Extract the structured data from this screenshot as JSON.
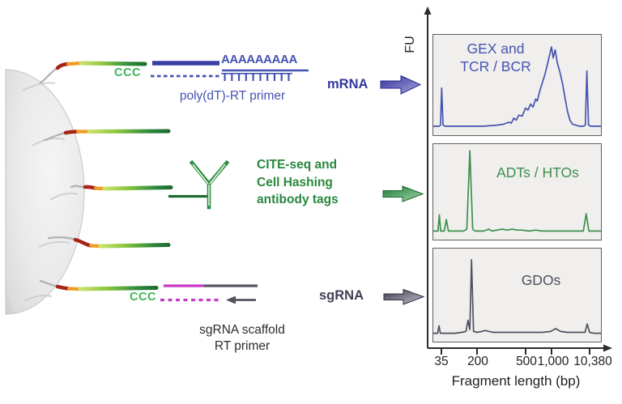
{
  "mrna_row": {
    "poly_a": "AAAAAAAAA",
    "poly_t": "TTTTTTTTTT",
    "ccc": "CCC",
    "primer_label": "poly(dT)-RT primer",
    "tag_label": "mRNA"
  },
  "antibody_row": {
    "tag_label": "CITE-seq and\nCell Hashing\nantibody tags"
  },
  "sgrna_row": {
    "ccc": "CCC",
    "scaffold_label": "sgRNA scaffold\nRT primer",
    "tag_label": "sgRNA"
  },
  "axis": {
    "y_label": "FU",
    "x_label": "Fragment length (bp)",
    "ticks": [
      "35",
      "200",
      "500",
      "1,000",
      "10,380"
    ]
  },
  "colors": {
    "blue": "#4553b0",
    "green": "#3d8f4d",
    "slate": "#50505f",
    "magenta": "#c838c8",
    "ccc_green": "#3cb558"
  },
  "chart_data": [
    {
      "type": "line",
      "label": "GEX and\nTCR / BCR",
      "color": "#4553b0",
      "x_scale": "log",
      "x_tick_labels": [
        "35",
        "200",
        "500",
        "1,000",
        "10,380"
      ],
      "y_axis": "FU",
      "peaks_bp_approx": [
        35,
        1500,
        10380
      ],
      "trace": [
        [
          0,
          9
        ],
        [
          3.5,
          9
        ],
        [
          4.3,
          10
        ],
        [
          5,
          47
        ],
        [
          5.8,
          10
        ],
        [
          7,
          9
        ],
        [
          12,
          9
        ],
        [
          20,
          9
        ],
        [
          30,
          9
        ],
        [
          38,
          10
        ],
        [
          42,
          11
        ],
        [
          45,
          13
        ],
        [
          46.5,
          12
        ],
        [
          48,
          17
        ],
        [
          49.5,
          15
        ],
        [
          51,
          20
        ],
        [
          53,
          19
        ],
        [
          55,
          27
        ],
        [
          56.5,
          25
        ],
        [
          58,
          31
        ],
        [
          59.5,
          28
        ],
        [
          61,
          36
        ],
        [
          62,
          34
        ],
        [
          63.5,
          44
        ],
        [
          65,
          52
        ],
        [
          66.5,
          60
        ],
        [
          68,
          70
        ],
        [
          69.5,
          81
        ],
        [
          70.5,
          88
        ],
        [
          71.5,
          77
        ],
        [
          72.7,
          85
        ],
        [
          74,
          72
        ],
        [
          75.5,
          63
        ],
        [
          77,
          52
        ],
        [
          78.5,
          38
        ],
        [
          80,
          24
        ],
        [
          81.5,
          15
        ],
        [
          83,
          11
        ],
        [
          85,
          10
        ],
        [
          87,
          9
        ],
        [
          89.5,
          9
        ],
        [
          90.7,
          10
        ],
        [
          91.6,
          64
        ],
        [
          92.6,
          10
        ],
        [
          94,
          9
        ],
        [
          97,
          9
        ],
        [
          100,
          9
        ]
      ]
    },
    {
      "type": "line",
      "label": "ADTs / HTOs",
      "color": "#3d8f4d",
      "x_scale": "log",
      "x_tick_labels": [
        "35",
        "200",
        "500",
        "1,000",
        "10,380"
      ],
      "y_axis": "FU",
      "peaks_bp_approx": [
        35,
        60,
        180,
        10380
      ],
      "trace": [
        [
          0,
          9
        ],
        [
          2.8,
          9
        ],
        [
          3.6,
          26
        ],
        [
          4.4,
          9
        ],
        [
          6.5,
          9
        ],
        [
          7.8,
          21
        ],
        [
          9,
          9
        ],
        [
          13,
          9
        ],
        [
          18,
          9
        ],
        [
          20,
          11
        ],
        [
          21.8,
          93
        ],
        [
          23.5,
          11
        ],
        [
          25,
          9
        ],
        [
          30,
          9
        ],
        [
          33,
          11
        ],
        [
          35,
          9
        ],
        [
          38,
          10
        ],
        [
          41,
          11
        ],
        [
          44,
          10
        ],
        [
          47,
          11
        ],
        [
          50,
          10
        ],
        [
          53,
          10
        ],
        [
          57,
          9
        ],
        [
          61,
          10
        ],
        [
          65,
          9
        ],
        [
          70,
          9
        ],
        [
          75,
          9
        ],
        [
          80,
          9
        ],
        [
          85,
          9
        ],
        [
          89.5,
          9
        ],
        [
          91.2,
          27
        ],
        [
          92.8,
          9
        ],
        [
          96,
          9
        ],
        [
          100,
          9
        ]
      ]
    },
    {
      "type": "line",
      "label": "GDOs",
      "color": "#50505f",
      "x_scale": "log",
      "x_tick_labels": [
        "35",
        "200",
        "500",
        "1,000",
        "10,380"
      ],
      "y_axis": "FU",
      "peaks_bp_approx": [
        35,
        180,
        200,
        10380
      ],
      "trace": [
        [
          0,
          9
        ],
        [
          2.6,
          9
        ],
        [
          3.4,
          17
        ],
        [
          4.2,
          9
        ],
        [
          8,
          9
        ],
        [
          13,
          9
        ],
        [
          17,
          10
        ],
        [
          19.5,
          11
        ],
        [
          20.7,
          23
        ],
        [
          21.8,
          13
        ],
        [
          22.8,
          88
        ],
        [
          24,
          11
        ],
        [
          26,
          10
        ],
        [
          29,
          11
        ],
        [
          31,
          12
        ],
        [
          33,
          11
        ],
        [
          36,
          10
        ],
        [
          40,
          10
        ],
        [
          45,
          10
        ],
        [
          50,
          10
        ],
        [
          55,
          10
        ],
        [
          60,
          10
        ],
        [
          65,
          10
        ],
        [
          70,
          11
        ],
        [
          73,
          14
        ],
        [
          76,
          11
        ],
        [
          80,
          10
        ],
        [
          85,
          10
        ],
        [
          88,
          10
        ],
        [
          90.5,
          10
        ],
        [
          91.8,
          19
        ],
        [
          93.2,
          10
        ],
        [
          96,
          9
        ],
        [
          100,
          9
        ]
      ]
    }
  ]
}
